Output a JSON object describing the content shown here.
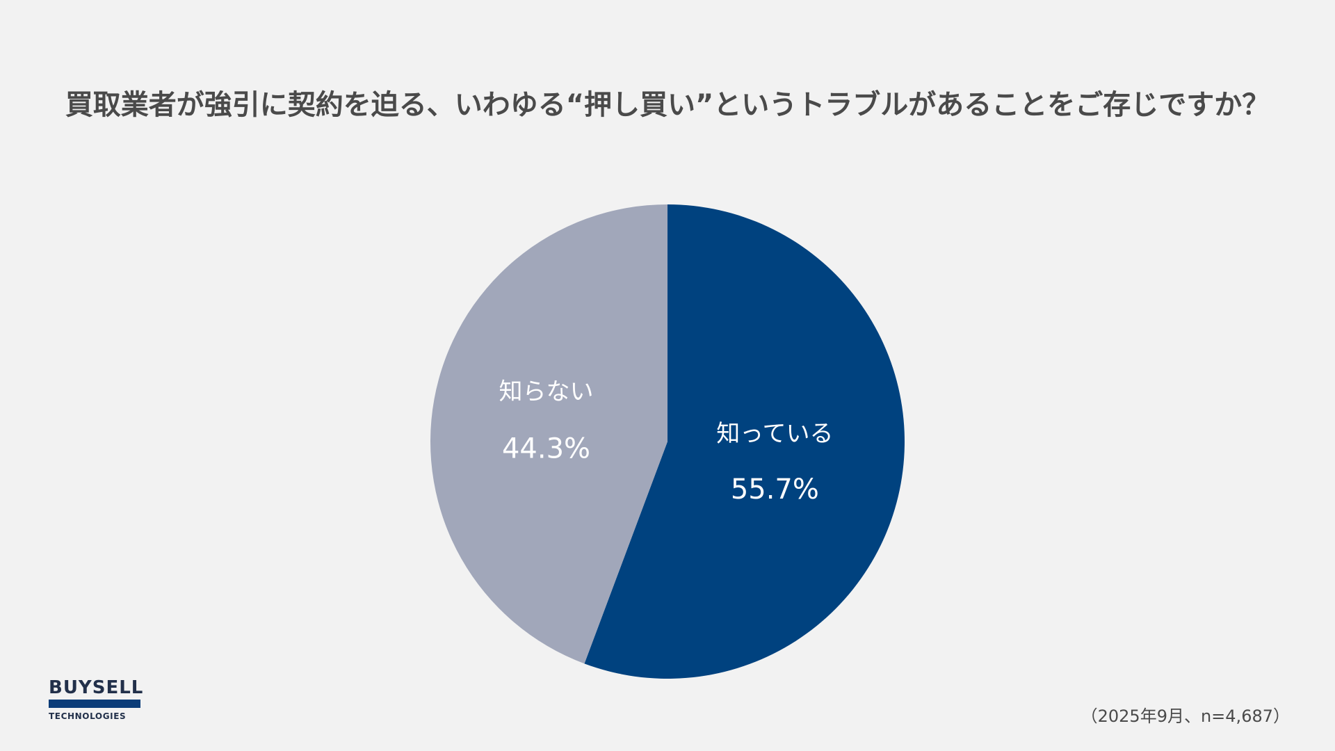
{
  "title": "買取業者が強引に契約を迫る、いわゆる“押し買い”というトラブルがあることをご存じですか？",
  "chart_data": {
    "type": "pie",
    "title": "買取業者が強引に契約を迫る、いわゆる“押し買い”というトラブルがあることをご存じですか？",
    "slices": [
      {
        "label": "知っている",
        "value": 55.7,
        "value_label": "55.7%",
        "color": "#00427f"
      },
      {
        "label": "知らない",
        "value": 44.3,
        "value_label": "44.3%",
        "color": "#a1a7ba"
      }
    ],
    "start": "12 o'clock",
    "direction": "clockwise",
    "legend": "none"
  },
  "logo": {
    "top_text": "BUYSELL",
    "bottom_text": "TECHNOLOGIES",
    "bar_color": "#0b3c78"
  },
  "footnote": "（2025年9月、n=4,687）"
}
